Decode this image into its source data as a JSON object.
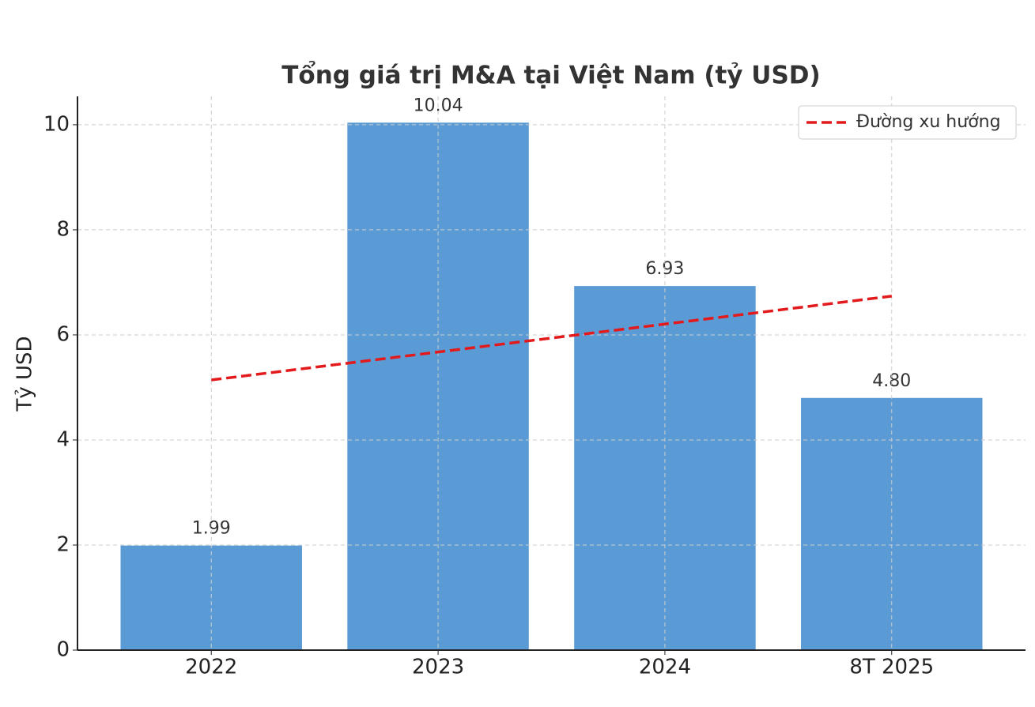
{
  "chart_data": {
    "type": "bar",
    "title": "Tổng giá trị M&A tại Việt Nam (tỷ USD)",
    "y_label": "Tỷ USD",
    "categories": [
      "2022",
      "2023",
      "2024",
      "8T 2025"
    ],
    "values": [
      1.99,
      10.04,
      6.93,
      4.8
    ],
    "value_labels": [
      "1.99",
      "10.04",
      "6.93",
      "4.80"
    ],
    "color": "#5b9bd5",
    "series": [
      {
        "name": "Đường xu hướng",
        "color": "#e31a1c",
        "values": [
          5.142,
          5.674,
          6.206,
          6.738
        ],
        "style": "dashed"
      }
    ],
    "ylim": [
      0,
      10.54
    ],
    "yticks": [
      0,
      2,
      4,
      6,
      8,
      10
    ],
    "grid": true,
    "legend": "upper right"
  }
}
